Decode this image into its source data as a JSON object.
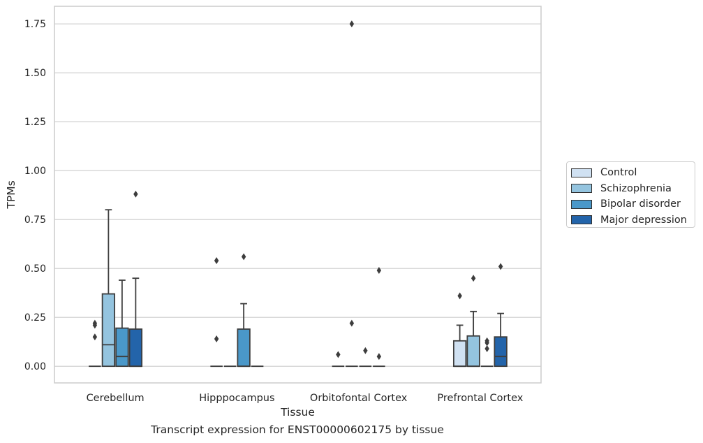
{
  "chart_data": {
    "type": "box",
    "xlabel": "Tissue",
    "ylabel": "TPMs",
    "ylim": [
      -0.085,
      1.84
    ],
    "yticks": [
      "0.00",
      "0.25",
      "0.50",
      "0.75",
      "1.00",
      "1.25",
      "1.50",
      "1.75"
    ],
    "grid": true,
    "legend_position": "right",
    "categories": [
      "Cerebellum",
      "Hipppocampus",
      "Orbitofontal Cortex",
      "Prefrontal Cortex"
    ],
    "series": [
      {
        "name": "Control",
        "color": "#d0e1f2",
        "boxes": [
          {
            "q1": 0,
            "median": 0,
            "q3": 0,
            "whisker_low": 0,
            "whisker_high": 0,
            "outliers": [
              0.22,
              0.21,
              0.15
            ]
          },
          {
            "q1": 0,
            "median": 0,
            "q3": 0,
            "whisker_low": 0,
            "whisker_high": 0,
            "outliers": [
              0.54,
              0.14
            ]
          },
          {
            "q1": 0,
            "median": 0,
            "q3": 0,
            "whisker_low": 0,
            "whisker_high": 0,
            "outliers": [
              0.06
            ]
          },
          {
            "q1": 0,
            "median": 0,
            "q3": 0.13,
            "whisker_low": 0,
            "whisker_high": 0.21,
            "outliers": [
              0.36
            ]
          }
        ]
      },
      {
        "name": "Schizophrenia",
        "color": "#94c4df",
        "boxes": [
          {
            "q1": 0,
            "median": 0.11,
            "q3": 0.37,
            "whisker_low": 0,
            "whisker_high": 0.8,
            "outliers": []
          },
          {
            "q1": 0,
            "median": 0,
            "q3": 0,
            "whisker_low": 0,
            "whisker_high": 0,
            "outliers": []
          },
          {
            "q1": 0,
            "median": 0,
            "q3": 0,
            "whisker_low": 0,
            "whisker_high": 0,
            "outliers": [
              1.75,
              0.22
            ]
          },
          {
            "q1": 0,
            "median": 0,
            "q3": 0.155,
            "whisker_low": 0,
            "whisker_high": 0.28,
            "outliers": [
              0.45
            ]
          }
        ]
      },
      {
        "name": "Bipolar disorder",
        "color": "#4a98c9",
        "boxes": [
          {
            "q1": 0,
            "median": 0.05,
            "q3": 0.195,
            "whisker_low": 0,
            "whisker_high": 0.44,
            "outliers": []
          },
          {
            "q1": 0,
            "median": 0,
            "q3": 0.19,
            "whisker_low": 0,
            "whisker_high": 0.32,
            "outliers": [
              0.56
            ]
          },
          {
            "q1": 0,
            "median": 0,
            "q3": 0,
            "whisker_low": 0,
            "whisker_high": 0,
            "outliers": [
              0.08
            ]
          },
          {
            "q1": 0,
            "median": 0,
            "q3": 0,
            "whisker_low": 0,
            "whisker_high": 0,
            "outliers": [
              0.13,
              0.12,
              0.09
            ]
          }
        ]
      },
      {
        "name": "Major depression",
        "color": "#2364aa",
        "boxes": [
          {
            "q1": 0,
            "median": 0,
            "q3": 0.19,
            "whisker_low": 0,
            "whisker_high": 0.45,
            "outliers": [
              0.88
            ]
          },
          {
            "q1": 0,
            "median": 0,
            "q3": 0,
            "whisker_low": 0,
            "whisker_high": 0,
            "outliers": []
          },
          {
            "q1": 0,
            "median": 0,
            "q3": 0,
            "whisker_low": 0,
            "whisker_high": 0,
            "outliers": [
              0.49,
              0.05
            ]
          },
          {
            "q1": 0,
            "median": 0.05,
            "q3": 0.15,
            "whisker_low": 0,
            "whisker_high": 0.27,
            "outliers": [
              0.51
            ]
          }
        ]
      }
    ],
    "caption": "Transcript expression for ENST00000602175 by tissue",
    "style": {
      "grid_color": "#cccccc",
      "frame_color": "#cccccc",
      "line_color": "#3d3d3d",
      "text_color": "#262626"
    }
  }
}
